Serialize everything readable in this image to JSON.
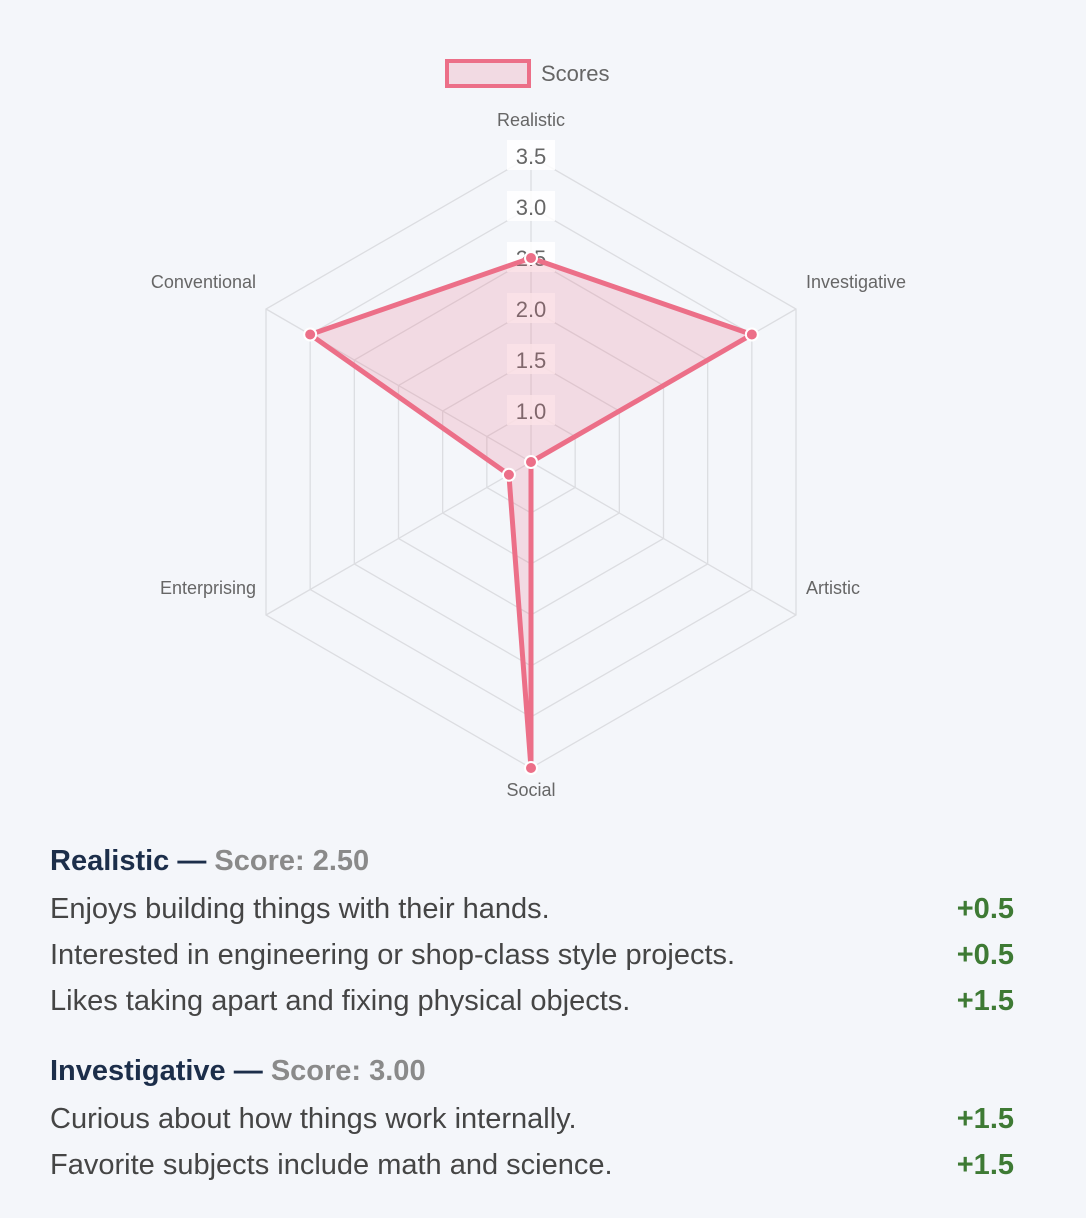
{
  "chart_data": {
    "type": "radar",
    "legend": {
      "label": "Scores",
      "position": "top"
    },
    "series": [
      {
        "name": "Scores",
        "values": [
          2.5,
          3.0,
          0.5,
          3.5,
          0.75,
          3.0
        ],
        "color": "#ec6f88",
        "fill": "rgba(236,111,136,0.20)"
      }
    ],
    "axes": [
      "Realistic",
      "Investigative",
      "Artistic",
      "Social",
      "Enterprising",
      "Conventional"
    ],
    "ticks": [
      "1.0",
      "1.5",
      "2.0",
      "2.5",
      "3.0",
      "3.5"
    ],
    "range": [
      0.5,
      3.5
    ],
    "grid": true
  },
  "sections": [
    {
      "title": "Realistic",
      "separator": " — ",
      "score_text": "Score: 2.50",
      "items": [
        {
          "text": "Enjoys building things with their hands.",
          "points": "+0.5"
        },
        {
          "text": "Interested in engineering or shop-class style projects.",
          "points": "+0.5"
        },
        {
          "text": "Likes taking apart and fixing physical objects.",
          "points": "+1.5"
        }
      ]
    },
    {
      "title": "Investigative",
      "separator": " — ",
      "score_text": "Score: 3.00",
      "items": [
        {
          "text": "Curious about how things work internally.",
          "points": "+1.5"
        },
        {
          "text": "Favorite subjects include math and science.",
          "points": "+1.5"
        }
      ]
    }
  ]
}
